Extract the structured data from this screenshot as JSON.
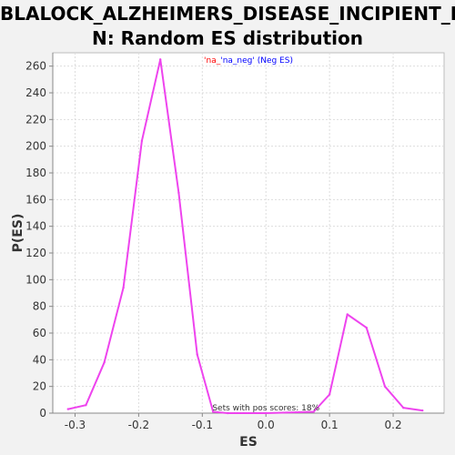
{
  "chart_data": {
    "type": "line",
    "title": "BLALOCK_ALZHEIMERS_DISEASE_INCIPIENT_D\nN: Random ES distribution",
    "xlabel": "ES",
    "ylabel": "P(ES)",
    "xlim": [
      -0.335,
      0.28
    ],
    "ylim": [
      0,
      270
    ],
    "xticks": [
      -0.3,
      -0.2,
      -0.1,
      0.0,
      0.1,
      0.2
    ],
    "xtick_labels": [
      "-0.3",
      "-0.2",
      "-0.1",
      "0.0",
      "0.1",
      "0.2"
    ],
    "yticks": [
      0,
      20,
      40,
      60,
      80,
      100,
      120,
      140,
      160,
      180,
      200,
      220,
      240,
      260
    ],
    "ytick_labels": [
      "0",
      "20",
      "40",
      "60",
      "80",
      "100",
      "120",
      "140",
      "160",
      "180",
      "200",
      "220",
      "240",
      "260"
    ],
    "grid": true,
    "legend": {
      "position": "top-center",
      "part1": "'na_",
      "part1_color": "#ff0000",
      "part2": "'na_neg' (Neg ES)",
      "part2_color": "#0000ff"
    },
    "annotation": "Sets with pos scores: 18%",
    "series": [
      {
        "color": "#ee44ee",
        "points": [
          [
            -0.311,
            3
          ],
          [
            -0.283,
            6
          ],
          [
            -0.254,
            38
          ],
          [
            -0.224,
            94
          ],
          [
            -0.195,
            204
          ],
          [
            -0.166,
            265
          ],
          [
            -0.137,
            165
          ],
          [
            -0.108,
            44
          ],
          [
            -0.083,
            1
          ],
          [
            -0.06,
            0
          ],
          [
            0.0,
            0
          ],
          [
            0.075,
            1
          ],
          [
            0.1,
            14
          ],
          [
            0.128,
            74
          ],
          [
            0.158,
            64
          ],
          [
            0.187,
            20
          ],
          [
            0.216,
            4
          ],
          [
            0.246,
            2
          ]
        ]
      }
    ]
  }
}
